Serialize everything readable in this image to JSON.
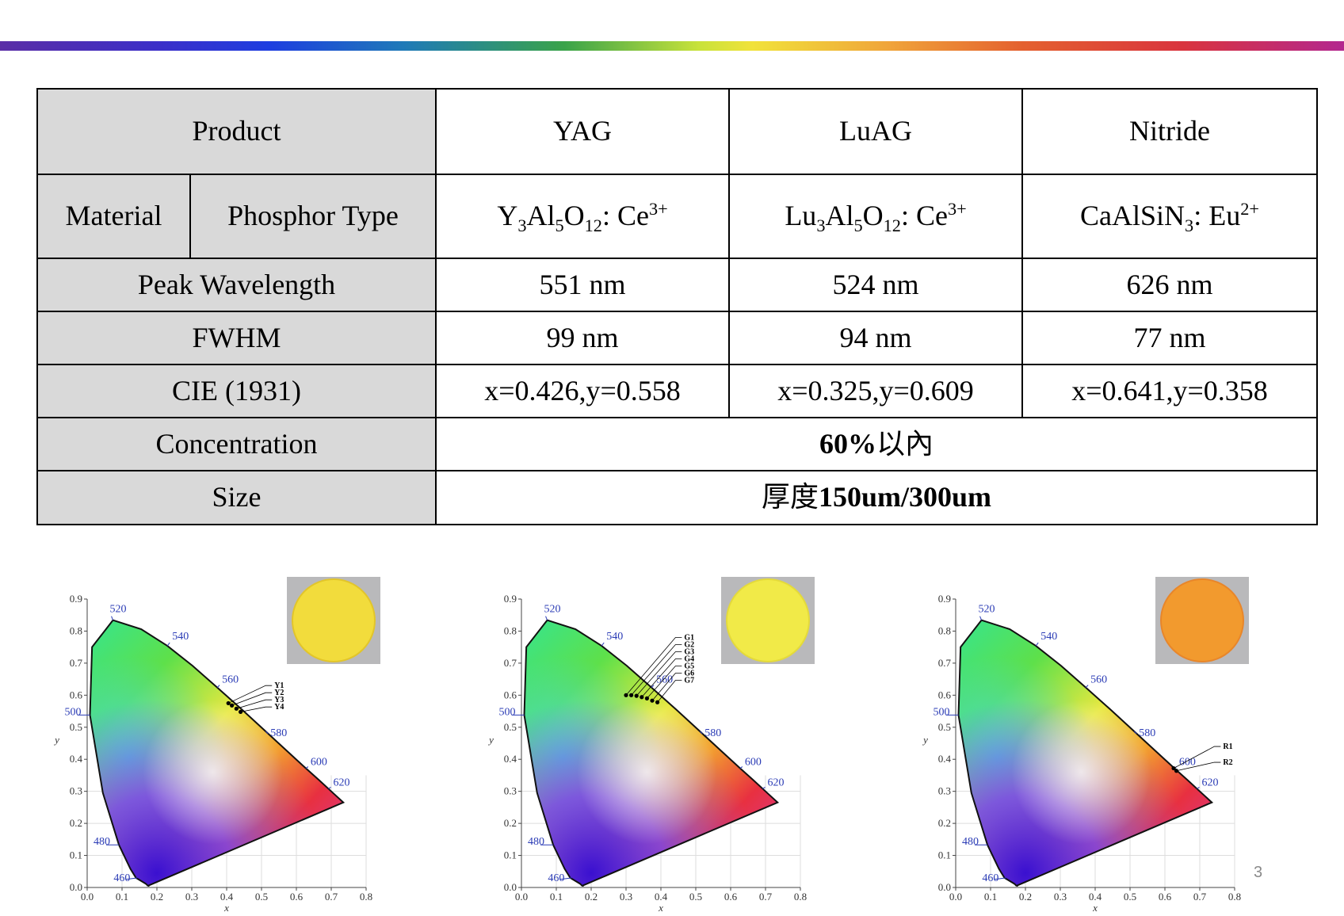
{
  "table": {
    "product_label": "Product",
    "products": [
      "YAG",
      "LuAG",
      "Nitride"
    ],
    "material_label": "Material",
    "phosphor_type_label": "Phosphor Type",
    "formulas": [
      {
        "a": "Y",
        "a_sub": "3",
        "b": "Al",
        "b_sub": "5",
        "c": "O",
        "c_sub": "12",
        "d": ": Ce",
        "d_sup": "3+"
      },
      {
        "a": "Lu",
        "a_sub": "3",
        "b": "Al",
        "b_sub": "5",
        "c": "O",
        "c_sub": "12",
        "d": ": Ce",
        "d_sup": "3+"
      },
      {
        "a": "CaAlSiN",
        "a_sub": "3",
        "b": ": Eu",
        "b_sup": "2+"
      }
    ],
    "peak_label": "Peak Wavelength",
    "peak_values": [
      "551 nm",
      "524 nm",
      "626 nm"
    ],
    "fwhm_label": "FWHM",
    "fwhm_values": [
      "99 nm",
      "94 nm",
      "77 nm"
    ],
    "cie_label": "CIE (1931)",
    "cie_values": [
      "x=0.426,y=0.558",
      "x=0.325,y=0.609",
      "x=0.641,y=0.358"
    ],
    "concentration_label": "Concentration",
    "concentration_value_bold": "60%",
    "concentration_value_rest": "以內",
    "size_label": "Size",
    "size_value_prefix": "厚度",
    "size_value_bold": "150um/300um"
  },
  "chart_data": [
    {
      "type": "scatter",
      "axis_ticks_x": [
        "0.0",
        "0.1",
        "0.2",
        "0.3",
        "0.4",
        "0.5",
        "0.6",
        "0.7",
        "0.8"
      ],
      "axis_ticks_y": [
        "0.0",
        "0.1",
        "0.2",
        "0.3",
        "0.4",
        "0.5",
        "0.6",
        "0.7",
        "0.8",
        "0.9"
      ],
      "xlabel": "x",
      "ylabel": "y",
      "xlim": [
        0,
        0.8
      ],
      "ylim": [
        0,
        0.9
      ],
      "wavelength_labels": [
        "460",
        "480",
        "500",
        "520",
        "540",
        "560",
        "580",
        "600",
        "620"
      ],
      "series": [
        {
          "name": "Y1",
          "x": 0.405,
          "y": 0.575
        },
        {
          "name": "Y2",
          "x": 0.415,
          "y": 0.568
        },
        {
          "name": "Y3",
          "x": 0.428,
          "y": 0.558
        },
        {
          "name": "Y4",
          "x": 0.44,
          "y": 0.548
        }
      ],
      "swatch_color": "#f2dc3c",
      "swatch_edge": "#e2c52a"
    },
    {
      "type": "scatter",
      "axis_ticks_x": [
        "0.0",
        "0.1",
        "0.2",
        "0.3",
        "0.4",
        "0.5",
        "0.6",
        "0.7",
        "0.8"
      ],
      "axis_ticks_y": [
        "0.0",
        "0.1",
        "0.2",
        "0.3",
        "0.4",
        "0.5",
        "0.6",
        "0.7",
        "0.8",
        "0.9"
      ],
      "xlabel": "x",
      "ylabel": "y",
      "xlim": [
        0,
        0.8
      ],
      "ylim": [
        0,
        0.9
      ],
      "wavelength_labels": [
        "460",
        "480",
        "500",
        "520",
        "540",
        "560",
        "580",
        "600",
        "620"
      ],
      "series": [
        {
          "name": "G1",
          "x": 0.3,
          "y": 0.6
        },
        {
          "name": "G2",
          "x": 0.315,
          "y": 0.6
        },
        {
          "name": "G3",
          "x": 0.33,
          "y": 0.598
        },
        {
          "name": "G4",
          "x": 0.345,
          "y": 0.594
        },
        {
          "name": "G5",
          "x": 0.36,
          "y": 0.59
        },
        {
          "name": "G6",
          "x": 0.375,
          "y": 0.583
        },
        {
          "name": "G7",
          "x": 0.39,
          "y": 0.578
        }
      ],
      "swatch_color": "#f1ea48",
      "swatch_edge": "#e4da3a"
    },
    {
      "type": "scatter",
      "axis_ticks_x": [
        "0.0",
        "0.1",
        "0.2",
        "0.3",
        "0.4",
        "0.5",
        "0.6",
        "0.7",
        "0.8"
      ],
      "axis_ticks_y": [
        "0.0",
        "0.1",
        "0.2",
        "0.3",
        "0.4",
        "0.5",
        "0.6",
        "0.7",
        "0.8",
        "0.9"
      ],
      "xlabel": "x",
      "ylabel": "y",
      "xlim": [
        0,
        0.8
      ],
      "ylim": [
        0,
        0.9
      ],
      "wavelength_labels": [
        "460",
        "480",
        "500",
        "520",
        "540",
        "560",
        "580",
        "600",
        "620"
      ],
      "series": [
        {
          "name": "R1",
          "x": 0.625,
          "y": 0.372
        },
        {
          "name": "R2",
          "x": 0.633,
          "y": 0.364
        }
      ],
      "swatch_color": "#f29a2e",
      "swatch_edge": "#e8862a"
    }
  ],
  "page_number": "3"
}
